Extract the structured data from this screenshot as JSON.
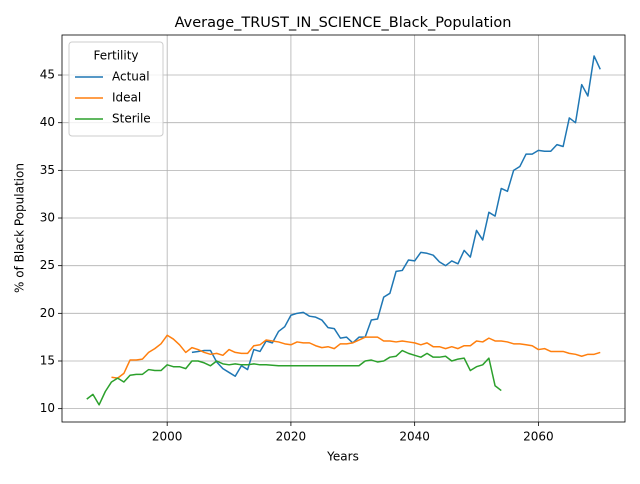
{
  "chart_data": {
    "type": "line",
    "title": "Average_TRUST_IN_SCIENCE_Black_Population",
    "xlabel": "Years",
    "ylabel": "% of Black Population",
    "legend_title": "Fertility",
    "legend": "upper left",
    "grid": true,
    "xlim": [
      1983,
      2074
    ],
    "xticks": [
      2000,
      2020,
      2040,
      2060
    ],
    "ylim": [
      8.6,
      49.2
    ],
    "yticks": [
      10,
      15,
      20,
      25,
      30,
      35,
      40,
      45
    ],
    "x": [
      1987,
      1988,
      1989,
      1990,
      1991,
      1992,
      1993,
      1994,
      1995,
      1996,
      1997,
      1998,
      1999,
      2000,
      2001,
      2002,
      2003,
      2004,
      2005,
      2006,
      2007,
      2008,
      2009,
      2010,
      2011,
      2012,
      2013,
      2014,
      2015,
      2016,
      2017,
      2018,
      2019,
      2020,
      2021,
      2022,
      2023,
      2024,
      2025,
      2026,
      2027,
      2028,
      2029,
      2030,
      2031,
      2032,
      2033,
      2034,
      2035,
      2036,
      2037,
      2038,
      2039,
      2040,
      2041,
      2042,
      2043,
      2044,
      2045,
      2046,
      2047,
      2048,
      2049,
      2050,
      2051,
      2052,
      2053,
      2054,
      2055,
      2056,
      2057,
      2058,
      2059,
      2060,
      2061,
      2062,
      2063,
      2064,
      2065,
      2066,
      2067,
      2068,
      2069,
      2070
    ],
    "series": [
      {
        "name": "Actual",
        "color": "#1f77b4",
        "values": [
          null,
          null,
          null,
          null,
          null,
          null,
          null,
          null,
          null,
          null,
          null,
          null,
          null,
          null,
          null,
          null,
          null,
          15.9,
          16.0,
          16.1,
          16.1,
          14.9,
          14.2,
          13.8,
          13.4,
          14.5,
          14.1,
          16.2,
          16.0,
          17.1,
          16.9,
          18.1,
          18.6,
          19.8,
          20.0,
          20.1,
          19.7,
          19.6,
          19.3,
          18.5,
          18.4,
          17.4,
          17.5,
          16.9,
          17.5,
          17.5,
          19.3,
          19.4,
          21.7,
          22.1,
          24.4,
          24.5,
          25.6,
          25.5,
          26.4,
          26.3,
          26.1,
          25.4,
          25.0,
          25.5,
          25.2,
          26.6,
          25.9,
          28.7,
          27.7,
          30.6,
          30.2,
          33.1,
          32.8,
          35.0,
          35.4,
          36.7,
          36.7,
          37.1,
          37.0,
          37.0,
          37.7,
          37.5,
          40.5,
          40.0,
          44.0,
          42.8,
          47.0,
          45.6
        ]
      },
      {
        "name": "Ideal",
        "color": "#ff7f0e",
        "values": [
          null,
          null,
          null,
          null,
          13.3,
          13.2,
          13.7,
          15.1,
          15.1,
          15.2,
          15.9,
          16.3,
          16.8,
          17.7,
          17.3,
          16.7,
          15.9,
          16.4,
          16.2,
          15.9,
          15.7,
          15.8,
          15.6,
          16.2,
          15.9,
          15.8,
          15.8,
          16.6,
          16.7,
          17.2,
          17.1,
          17.0,
          16.8,
          16.7,
          17.0,
          16.9,
          16.9,
          16.6,
          16.4,
          16.5,
          16.3,
          16.8,
          16.8,
          16.9,
          17.2,
          17.5,
          17.5,
          17.5,
          17.1,
          17.1,
          17.0,
          17.1,
          17.0,
          16.9,
          16.7,
          16.9,
          16.5,
          16.5,
          16.3,
          16.5,
          16.3,
          16.6,
          16.6,
          17.1,
          17.0,
          17.4,
          17.1,
          17.1,
          17.0,
          16.8,
          16.8,
          16.7,
          16.6,
          16.2,
          16.3,
          16.0,
          16.0,
          16.0,
          15.8,
          15.7,
          15.5,
          15.7,
          15.7,
          15.9
        ]
      },
      {
        "name": "Sterile",
        "color": "#2ca02c",
        "values": [
          11.0,
          11.5,
          10.4,
          11.8,
          12.8,
          13.2,
          12.8,
          13.5,
          13.6,
          13.6,
          14.1,
          14.0,
          14.0,
          14.6,
          14.4,
          14.4,
          14.2,
          15.0,
          15.0,
          14.8,
          14.5,
          15.0,
          14.7,
          14.6,
          14.7,
          14.6,
          14.6,
          14.7,
          14.6,
          14.6,
          14.55,
          14.5,
          14.5,
          14.5,
          14.5,
          14.5,
          14.5,
          14.5,
          14.5,
          14.5,
          14.5,
          14.5,
          14.5,
          14.5,
          14.5,
          15.0,
          15.1,
          14.9,
          15.0,
          15.4,
          15.5,
          16.1,
          15.8,
          15.6,
          15.4,
          15.8,
          15.4,
          15.4,
          15.5,
          15.0,
          15.2,
          15.3,
          14.0,
          14.4,
          14.6,
          15.3,
          12.4,
          11.9,
          null,
          null,
          null,
          null,
          null,
          null,
          null,
          null,
          null,
          null,
          null,
          null,
          null,
          null,
          null,
          null
        ]
      }
    ]
  }
}
